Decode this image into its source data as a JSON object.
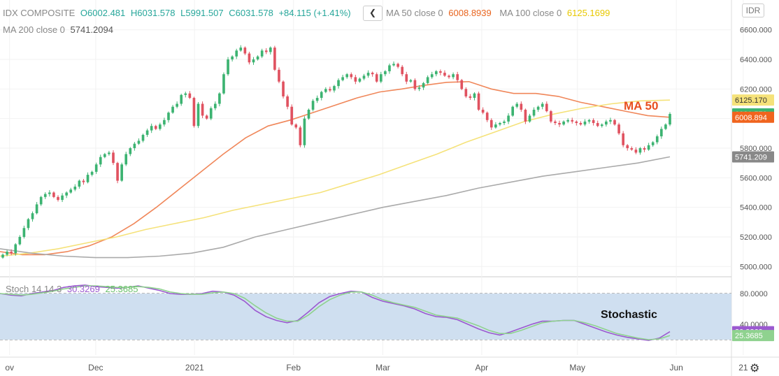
{
  "header": {
    "symbol": "IDX COMPOSITE",
    "open": "O6002.481",
    "high": "H6031.578",
    "low": "L5991.507",
    "close": "C6031.578",
    "change": "+84.115 (+1.41%)",
    "collapse_icon": "chevron-left-icon",
    "ma50_label": "MA 50 close 0",
    "ma50_value": "6008.8939",
    "ma100_label": "MA 100 close 0",
    "ma100_value": "6125.1699",
    "ma200_label": "MA 200 close 0",
    "ma200_value": "5741.2094",
    "currency": "IDR"
  },
  "stoch": {
    "label": "Stoch 14 14 3",
    "k_value": "30.3269",
    "d_value": "25.3685"
  },
  "annotations": {
    "ma": "MA 50",
    "stoch": "Stochastic"
  },
  "colors": {
    "up": "#3cb371",
    "down": "#e05260",
    "ma50": "#f0875a",
    "ma100": "#f5e27a",
    "ma200": "#aaaaaa",
    "k_line": "#9b59d0",
    "d_line": "#8fd28f",
    "stoch_band": "#cfdff0"
  },
  "chart_data": [
    {
      "type": "candlestick",
      "y_axis_ticks": [
        "6600.000",
        "6400.000",
        "6200.000",
        "6000.000",
        "5800.000",
        "5600.000",
        "5400.000",
        "5200.000",
        "5000.000"
      ],
      "ylim": [
        4940,
        6660
      ],
      "x_labels": [
        {
          "label": "ov",
          "day": 3
        },
        {
          "label": "Dec",
          "day": 30
        },
        {
          "label": "2021",
          "day": 61
        },
        {
          "label": "Feb",
          "day": 92
        },
        {
          "label": "Mar",
          "day": 120
        },
        {
          "label": "Apr",
          "day": 151
        },
        {
          "label": "May",
          "day": 181
        },
        {
          "label": "Jun",
          "day": 212
        },
        {
          "label": "21",
          "day": 233
        }
      ],
      "price_labels": [
        {
          "value": 6125.17,
          "text": "6125.170",
          "color": "#f5e27a",
          "text_color": "#333"
        },
        {
          "value": 6031.578,
          "text": "6031.578",
          "color": "#3cb371",
          "text_color": "#fff"
        },
        {
          "value": 6008.894,
          "text": "6008.894",
          "color": "#f0641e",
          "text_color": "#fff"
        },
        {
          "value": 5741.209,
          "text": "5741.209",
          "color": "#888888",
          "text_color": "#fff"
        }
      ],
      "closes": [
        5080,
        5100,
        5090,
        5150,
        5200,
        5260,
        5320,
        5360,
        5420,
        5470,
        5490,
        5500,
        5470,
        5450,
        5480,
        5500,
        5520,
        5540,
        5580,
        5570,
        5620,
        5640,
        5690,
        5740,
        5760,
        5770,
        5700,
        5580,
        5690,
        5760,
        5800,
        5830,
        5850,
        5890,
        5920,
        5950,
        5930,
        5960,
        5990,
        6040,
        6080,
        6100,
        6160,
        6170,
        6140,
        5950,
        6100,
        6020,
        6000,
        6070,
        6100,
        6170,
        6300,
        6400,
        6420,
        6460,
        6480,
        6440,
        6380,
        6400,
        6420,
        6460,
        6450,
        6480,
        6330,
        6250,
        6150,
        6080,
        5960,
        5940,
        5820,
        6000,
        6060,
        6120,
        6140,
        6180,
        6200,
        6190,
        6220,
        6260,
        6280,
        6300,
        6280,
        6250,
        6270,
        6290,
        6310,
        6300,
        6250,
        6300,
        6320,
        6360,
        6370,
        6350,
        6300,
        6250,
        6260,
        6200,
        6210,
        6240,
        6280,
        6300,
        6320,
        6310,
        6290,
        6280,
        6300,
        6260,
        6200,
        6150,
        6140,
        6170,
        6060,
        6040,
        5990,
        5940,
        5960,
        5970,
        5980,
        6020,
        6080,
        6100,
        6060,
        5980,
        6020,
        6060,
        6080,
        6100,
        6050,
        5980,
        5970,
        5960,
        5980,
        5990,
        5980,
        5970,
        5960,
        5980,
        5990,
        5970,
        5950,
        5960,
        5980,
        5990,
        5960,
        5900,
        5820,
        5800,
        5790,
        5770,
        5800,
        5790,
        5820,
        5840,
        5880,
        5930,
        5960,
        6031.578
      ],
      "moving_averages": [
        {
          "name": "MA 50",
          "values": [
            5100,
            5080,
            5080,
            5100,
            5140,
            5200,
            5290,
            5400,
            5520,
            5640,
            5760,
            5870,
            5950,
            5990,
            6040,
            6090,
            6140,
            6180,
            6200,
            6225,
            6245,
            6250,
            6200,
            6170,
            6170,
            6150,
            6110,
            6080,
            6050,
            6020,
            6008.894
          ],
          "x_start": 0,
          "x_end": 210
        },
        {
          "name": "MA 100",
          "values": [
            5070,
            5090,
            5120,
            5160,
            5200,
            5250,
            5290,
            5330,
            5380,
            5420,
            5460,
            5500,
            5560,
            5620,
            5690,
            5760,
            5840,
            5910,
            5980,
            6030,
            6070,
            6100,
            6120,
            6125.17
          ],
          "x_start": 0,
          "x_end": 210
        },
        {
          "name": "MA 200",
          "values": [
            5120,
            5090,
            5070,
            5060,
            5060,
            5070,
            5090,
            5130,
            5200,
            5250,
            5300,
            5350,
            5400,
            5440,
            5480,
            5530,
            5570,
            5610,
            5640,
            5670,
            5700,
            5741.209
          ],
          "x_start": 0,
          "x_end": 210
        }
      ]
    },
    {
      "type": "line",
      "y_axis_ticks": [
        "80.0000",
        "40.0000"
      ],
      "ylim": [
        0,
        100
      ],
      "band": [
        20,
        80
      ],
      "x_end": 210,
      "series": [
        {
          "name": "K",
          "color": "#9b59d0",
          "values": [
            80,
            78,
            77,
            80,
            82,
            84,
            88,
            90,
            91,
            89,
            88,
            87,
            88,
            90,
            87,
            84,
            80,
            79,
            79,
            80,
            83,
            82,
            78,
            70,
            58,
            50,
            45,
            42,
            45,
            56,
            68,
            76,
            80,
            83,
            82,
            75,
            70,
            67,
            64,
            60,
            54,
            50,
            49,
            46,
            40,
            34,
            29,
            26,
            30,
            35,
            40,
            44,
            44,
            45,
            45,
            40,
            35,
            30,
            26,
            23,
            21,
            19,
            22,
            30.3269
          ]
        },
        {
          "name": "D",
          "color": "#8fd28f",
          "values": [
            80,
            79,
            78,
            79,
            81,
            83,
            86,
            88,
            90,
            90,
            89,
            88,
            88,
            89,
            88,
            86,
            82,
            80,
            79,
            79,
            81,
            82,
            80,
            74,
            64,
            55,
            48,
            44,
            44,
            52,
            63,
            72,
            78,
            82,
            82,
            78,
            72,
            68,
            65,
            62,
            57,
            52,
            50,
            48,
            43,
            38,
            32,
            28,
            28,
            32,
            37,
            42,
            44,
            45,
            45,
            42,
            38,
            33,
            28,
            25,
            22,
            20,
            21,
            25.3685
          ]
        }
      ]
    }
  ]
}
